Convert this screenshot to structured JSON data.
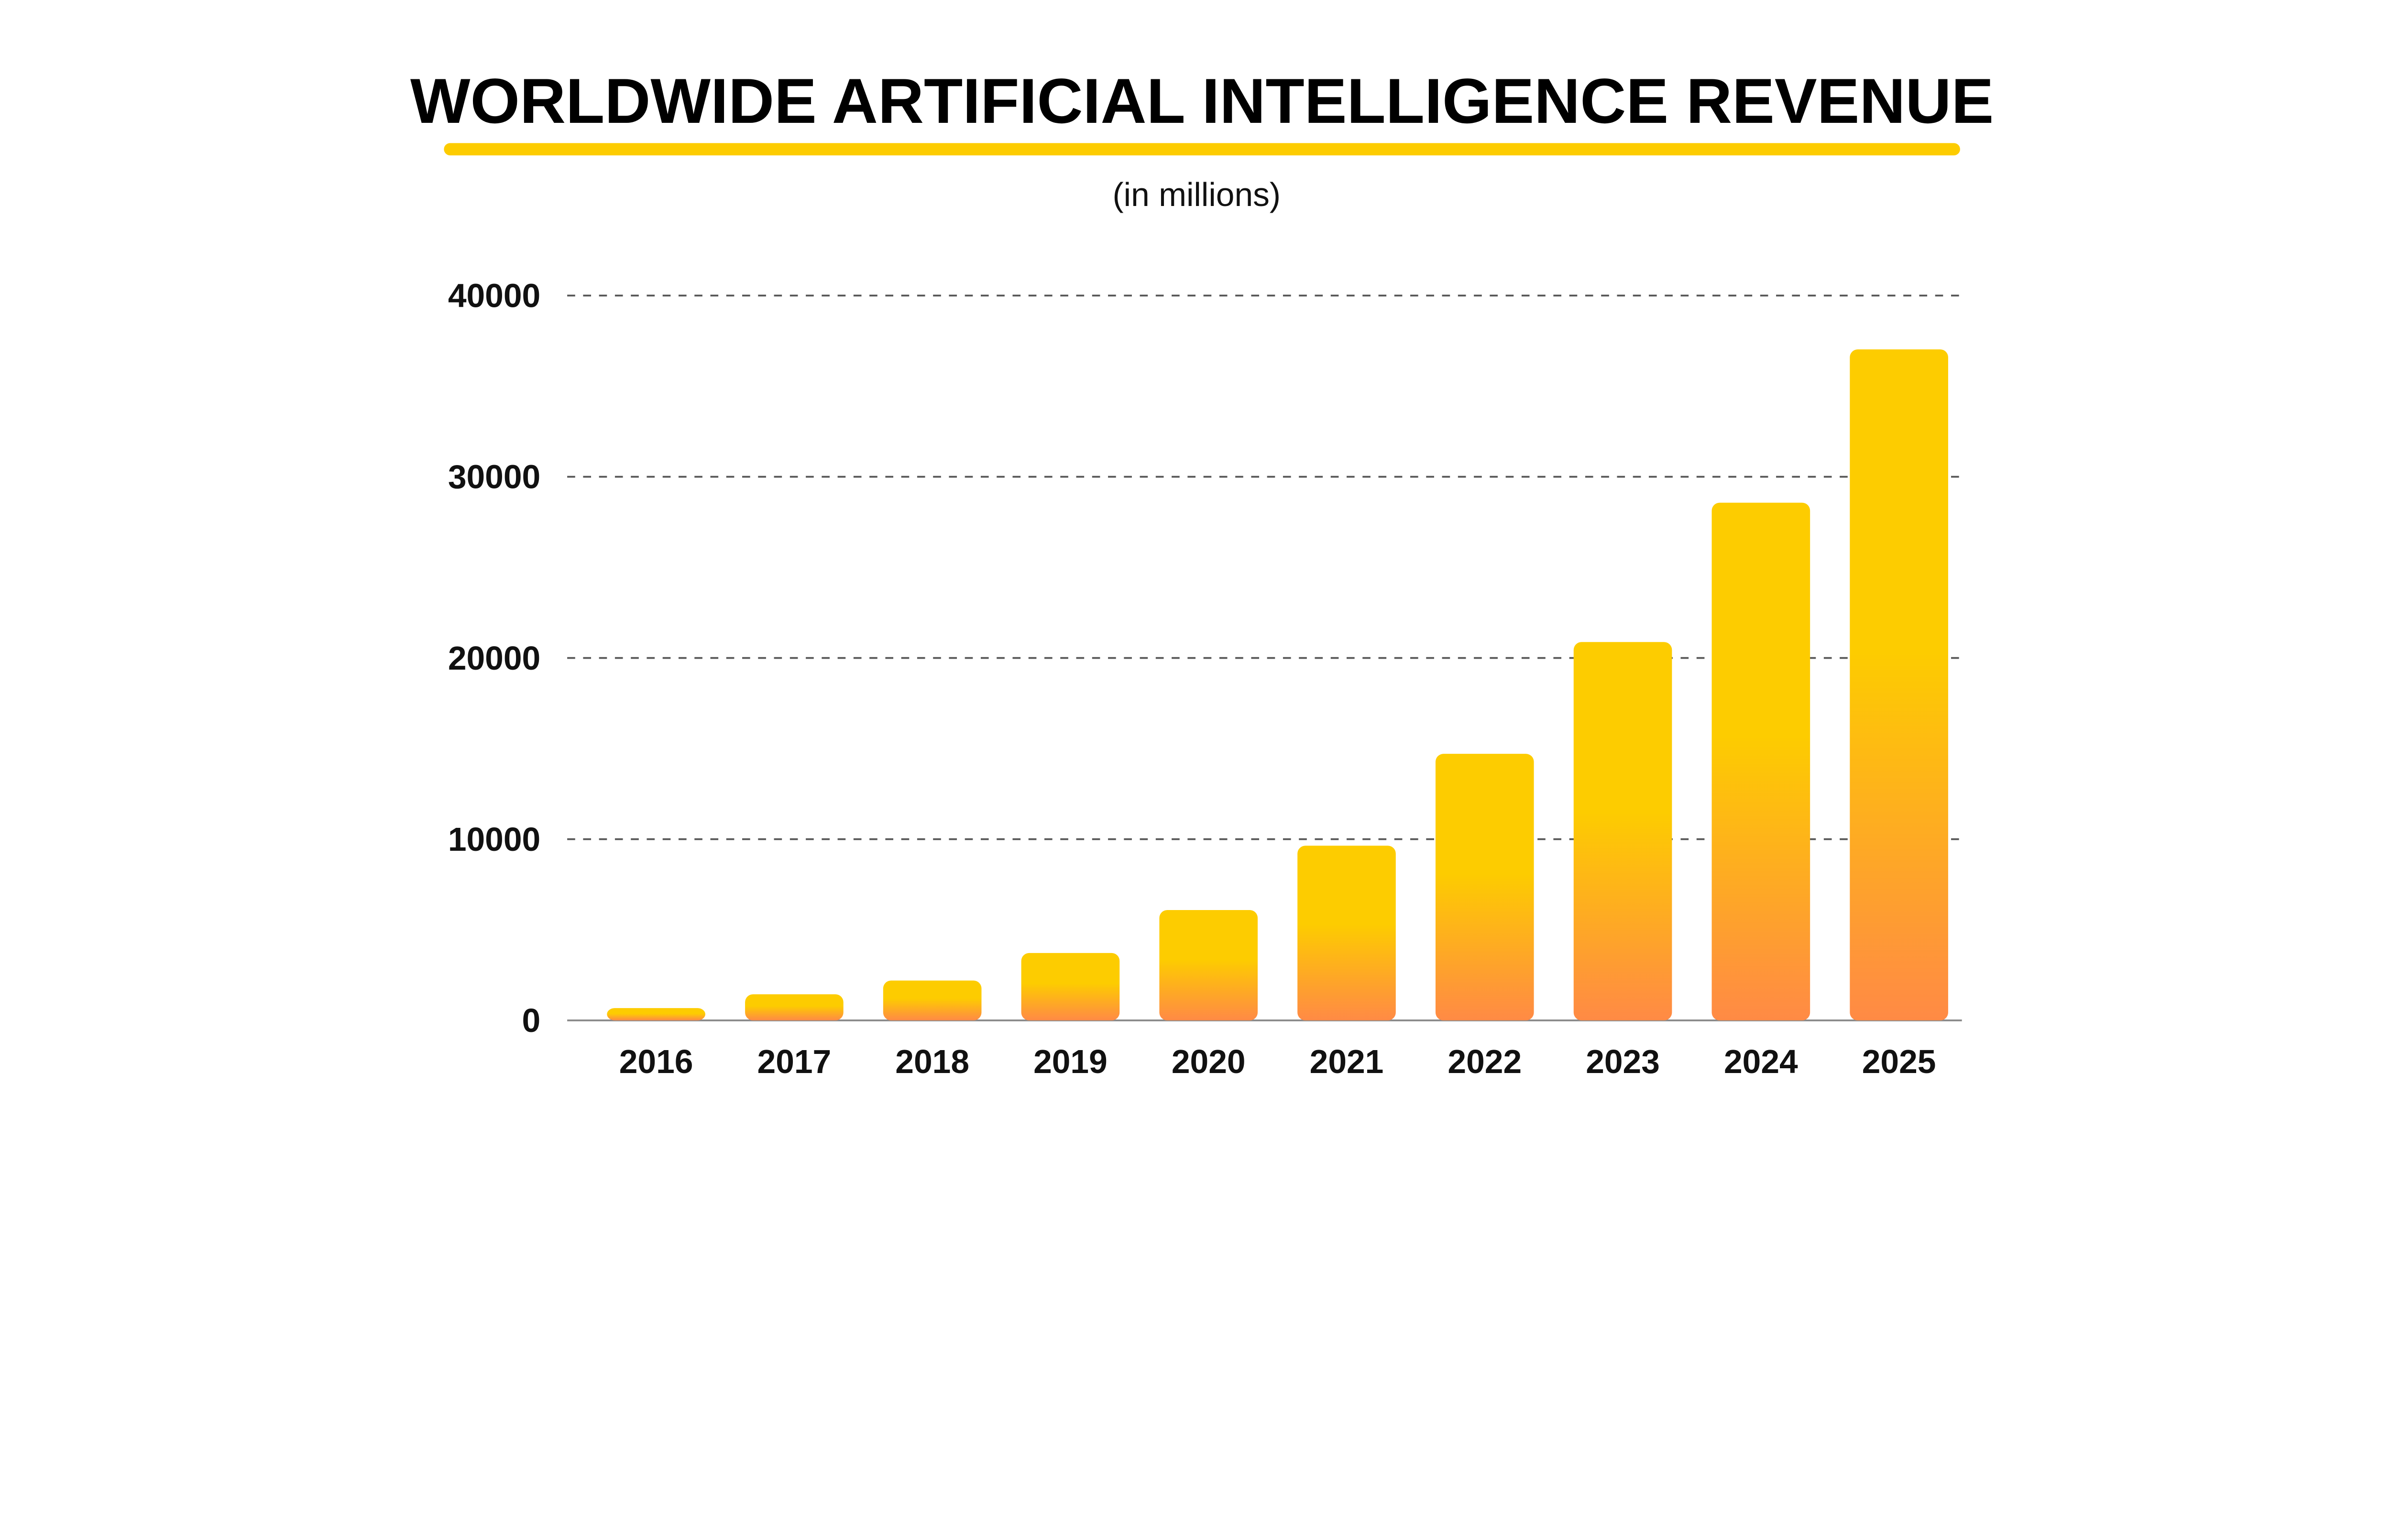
{
  "chart_data": {
    "type": "bar",
    "title": "WORLDWIDE ARTIFICIAL INTELLIGENCE REVENUE",
    "subtitle": "(in millions)",
    "xlabel": "",
    "ylabel": "",
    "categories": [
      "2016",
      "2017",
      "2018",
      "2019",
      "2020",
      "2021",
      "2022",
      "2023",
      "2024",
      "2025"
    ],
    "values": [
      680,
      1440,
      2200,
      3720,
      6090,
      9640,
      14710,
      20880,
      28570,
      37030
    ],
    "ylim": [
      0,
      40000
    ],
    "yticks": [
      "0",
      "10000",
      "20000",
      "30000",
      "40000"
    ],
    "grid": true,
    "grid_style": "dashed",
    "legend": "none",
    "colors": {
      "accent_underline": "#FDCC00",
      "bar_top": "#FDCC00",
      "bar_bottom": "#FF8A45",
      "grid": "#555555",
      "axis": "#888888"
    }
  }
}
